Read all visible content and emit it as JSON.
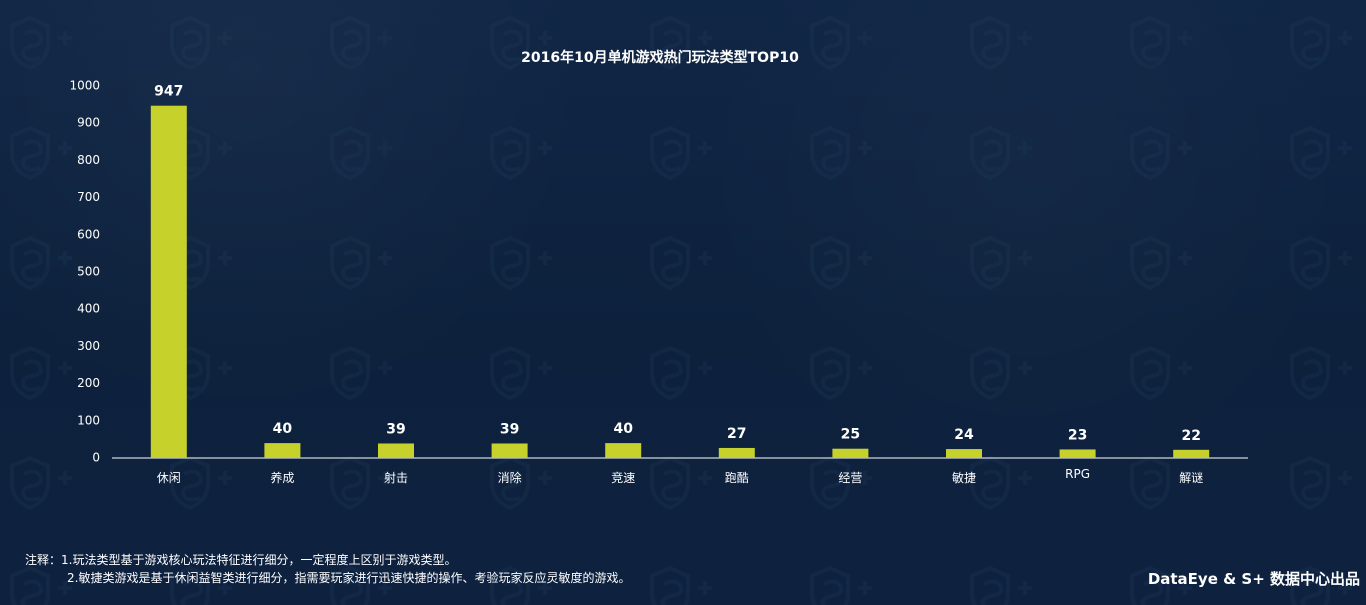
{
  "chart_data": {
    "type": "bar",
    "title": "2016年10月单机游戏热门玩法类型TOP10",
    "categories": [
      "休闲",
      "养成",
      "射击",
      "消除",
      "竞速",
      "跑酷",
      "经营",
      "敏捷",
      "RPG",
      "解谜"
    ],
    "values": [
      947,
      40,
      39,
      39,
      40,
      27,
      25,
      24,
      23,
      22
    ],
    "ylim": [
      0,
      1000
    ],
    "y_ticks": [
      0,
      100,
      200,
      300,
      400,
      500,
      600,
      700,
      800,
      900,
      1000
    ],
    "xlabel": "",
    "ylabel": "",
    "grid": false,
    "legend": "none",
    "colors": {
      "bar": "#c7d12c",
      "text": "#ffffff",
      "axis": "#ffffff"
    }
  },
  "notes": {
    "line1": "注释：1.玩法类型基于游戏核心玩法特征进行细分，一定程度上区别于游戏类型。",
    "line2": "2.敏捷类游戏是基于休闲益智类进行细分，指需要玩家进行迅速快捷的操作、考验玩家反应灵敏度的游戏。"
  },
  "footer": {
    "brand": "DataEye & S+ 数据中心出品"
  }
}
